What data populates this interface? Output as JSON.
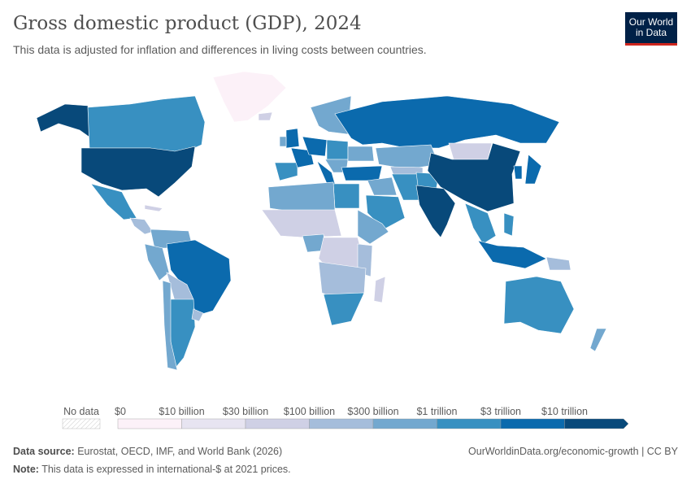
{
  "header": {
    "title": "Gross domestic product (GDP), 2024",
    "subtitle": "This data is adjusted for inflation and differences in living costs between countries.",
    "logo_line1": "Our World",
    "logo_line2": "in Data"
  },
  "legend": {
    "no_data_label": "No data",
    "no_data_color": "#e0e0e0",
    "bins": [
      {
        "label": "$0",
        "color": "#fcf1f8"
      },
      {
        "label": "$10 billion",
        "color": "#e7e4f1"
      },
      {
        "label": "$30 billion",
        "color": "#cfd0e5"
      },
      {
        "label": "$100 billion",
        "color": "#a5bddb"
      },
      {
        "label": "$300 billion",
        "color": "#73a8cf"
      },
      {
        "label": "$1 trillion",
        "color": "#3890c1"
      },
      {
        "label": "$3 trillion",
        "color": "#0b6aad"
      },
      {
        "label": "$10 trillion",
        "color": "#08497a"
      }
    ]
  },
  "footer": {
    "source_label": "Data source:",
    "source": "Eurostat, OECD, IMF, and World Bank (2026)",
    "note_label": "Note:",
    "note": "This data is expressed in international-$ at 2021 prices.",
    "credit": "OurWorldinData.org/economic-growth | CC BY"
  }
}
